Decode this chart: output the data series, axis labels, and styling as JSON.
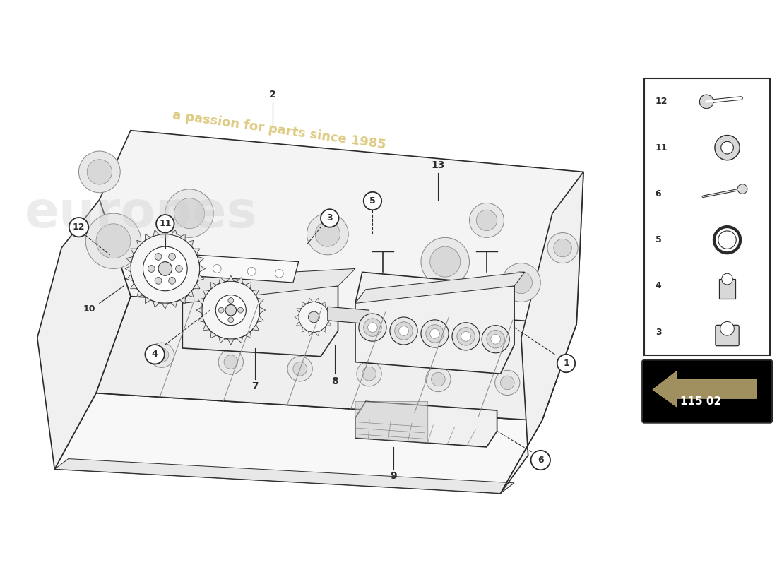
{
  "bg_color": "#ffffff",
  "line_color": "#2a2a2a",
  "mid_gray": "#888888",
  "light_gray": "#cccccc",
  "fill_light": "#f2f2f2",
  "fill_mid": "#e8e8e8",
  "fill_dark": "#d8d8d8",
  "watermark1": "europes",
  "watermark2": "a passion for parts since 1985",
  "diagram_code": "115 02",
  "sidebar_items": [
    12,
    11,
    6,
    5,
    4,
    3
  ],
  "part_numbers": [
    1,
    2,
    3,
    4,
    5,
    6,
    7,
    8,
    9,
    10,
    11,
    12,
    13
  ]
}
